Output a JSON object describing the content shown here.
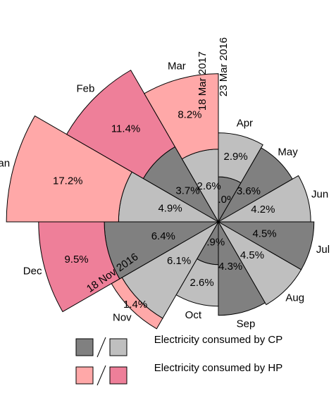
{
  "chart_data": {
    "type": "rose",
    "categories": [
      "Apr",
      "May",
      "Jun",
      "Jul",
      "Aug",
      "Sep",
      "Oct",
      "Nov",
      "Dec",
      "Jan",
      "Feb",
      "Mar"
    ],
    "series": [
      {
        "colors": [
          "#808080",
          null,
          null,
          null,
          null,
          null,
          "#808080",
          null,
          null,
          null,
          null,
          null
        ],
        "values": [
          1.0,
          null,
          null,
          null,
          null,
          null,
          0.9,
          null,
          null,
          null,
          null,
          null
        ],
        "value_labels": [
          "1.0%",
          null,
          null,
          null,
          null,
          null,
          "0.9%",
          null,
          null,
          null,
          null,
          null
        ]
      },
      {
        "name": "Electricity consumed by CP",
        "legend_colors": [
          "#808080",
          "#bfbfbf"
        ],
        "colors": [
          "#bfbfbf",
          "#808080",
          "#bfbfbf",
          "#808080",
          "#bfbfbf",
          "#808080",
          "#bfbfbf",
          "#bfbfbf",
          "#808080",
          "#bfbfbf",
          "#808080",
          "#bfbfbf"
        ],
        "values": [
          2.9,
          3.6,
          4.2,
          4.5,
          4.5,
          4.3,
          2.6,
          6.1,
          6.4,
          4.9,
          3.7,
          2.6
        ],
        "value_labels": [
          "2.9%",
          "3.6%",
          "4.2%",
          "4.5%",
          "4.5%",
          "4.3%",
          "2.6%",
          "6.1%",
          "6.4%",
          "4.9%",
          "3.7%",
          "2.6%"
        ]
      },
      {
        "name": "Electricity consumed by HP",
        "legend_colors": [
          "#ffa8a8",
          "#ee7f99"
        ],
        "colors": [
          null,
          null,
          null,
          null,
          null,
          null,
          null,
          "#ffa8a8",
          "#ee7f99",
          "#ffa8a8",
          "#ee7f99",
          "#ffa8a8"
        ],
        "values": [
          null,
          null,
          null,
          null,
          null,
          null,
          null,
          1.4,
          9.5,
          17.2,
          11.4,
          8.2
        ],
        "value_labels": [
          null,
          null,
          null,
          null,
          null,
          null,
          null,
          "1.4%",
          "9.5%",
          "17.2%",
          "11.4%",
          "8.2%"
        ]
      }
    ],
    "annotations": [
      "23 Mar 2016",
      "18 Mar 2017",
      "18 Nov 2016"
    ]
  }
}
